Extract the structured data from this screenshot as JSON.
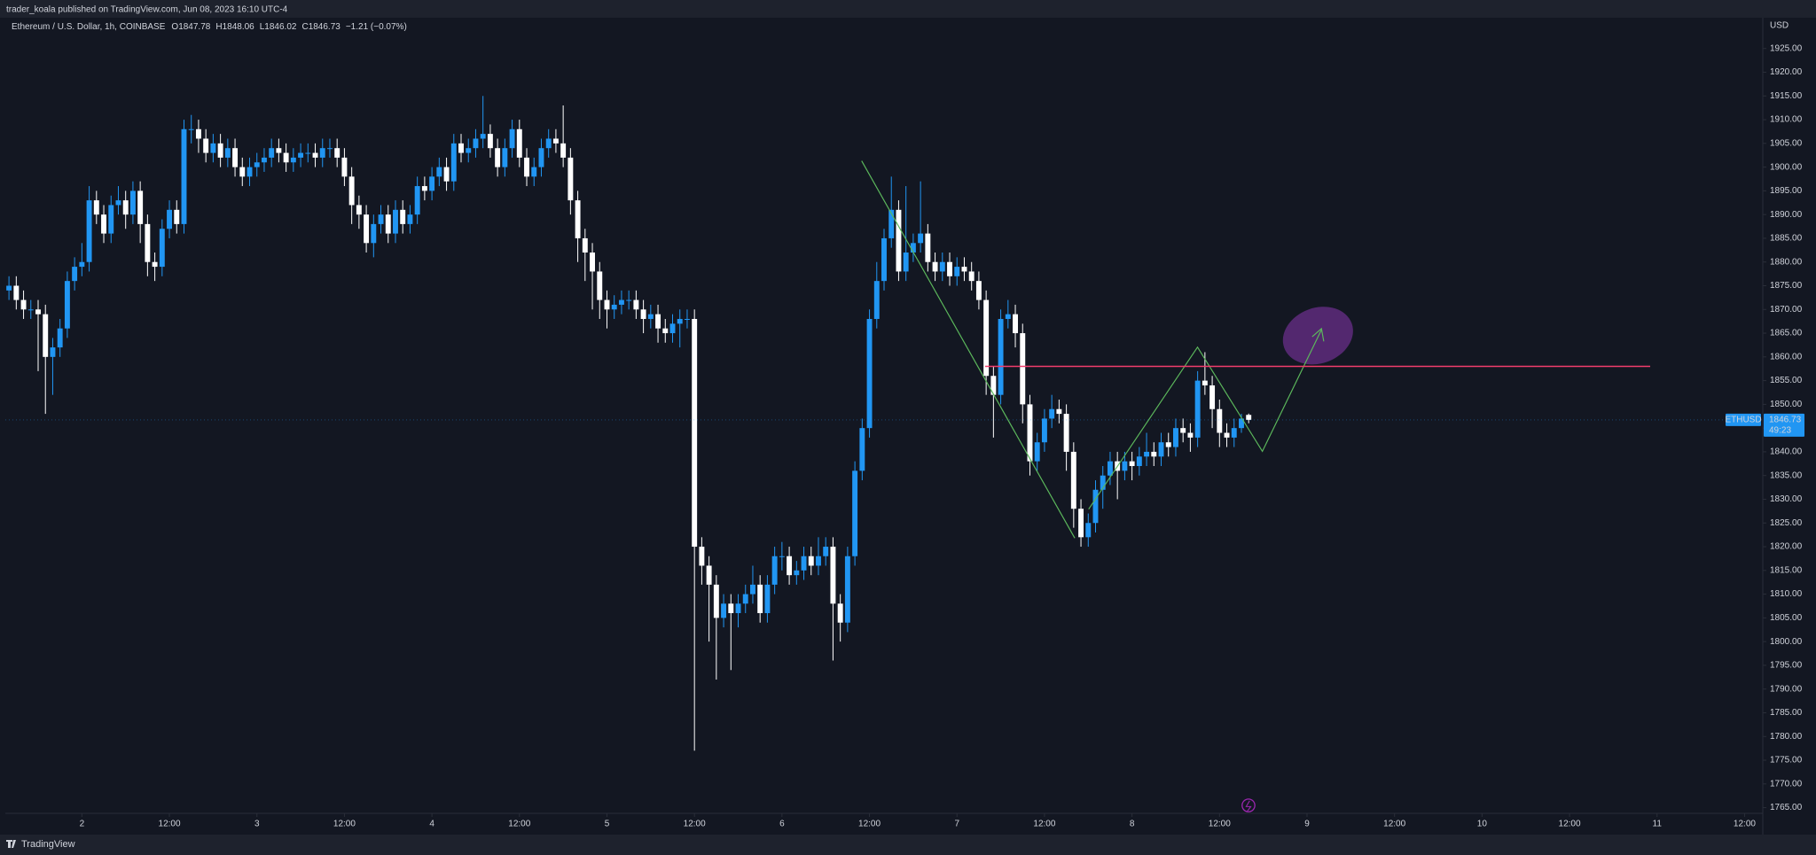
{
  "chart_data": {
    "type": "candlestick",
    "published": "trader_koala published on TradingView.com, Jun 08, 2023 16:10 UTC-4",
    "title": "Ethereum / U.S. Dollar, 1h, COINBASE",
    "ohlc_labels": [
      "O",
      "H",
      "L",
      "C"
    ],
    "change_label": "−1.21 (−0.07%)",
    "currency": "USD",
    "symbol_tag": "ETHUSD",
    "countdown": "49:23",
    "footer": "TradingView",
    "up_color": "#2196f3",
    "down_color": "#ffffff",
    "open": [
      1874,
      1875,
      1872,
      1870,
      1870,
      1869,
      1860,
      1862,
      1866,
      1876,
      1879,
      1880,
      1893,
      1890,
      1886,
      1892,
      1893,
      1890,
      1895,
      1888,
      1880,
      1879,
      1887,
      1891,
      1888,
      1908,
      1908,
      1906,
      1903,
      1905,
      1902,
      1904,
      1900,
      1898,
      1900,
      1901,
      1902,
      1904,
      1903,
      1901,
      1902,
      1903,
      1903,
      1902,
      1904,
      1904,
      1902,
      1898,
      1892,
      1890,
      1884,
      1888,
      1890,
      1886,
      1891,
      1888,
      1890,
      1896,
      1895,
      1898,
      1900,
      1897,
      1905,
      1903,
      1904,
      1906,
      1907,
      1904,
      1900,
      1904,
      1908,
      1902,
      1898,
      1900,
      1904,
      1906,
      1905,
      1902,
      1893,
      1885,
      1882,
      1878,
      1872,
      1870,
      1871,
      1872,
      1872,
      1870,
      1868,
      1869,
      1866,
      1865,
      1867,
      1868,
      1868,
      1820,
      1816,
      1812,
      1805,
      1808,
      1806,
      1808,
      1810,
      1812,
      1806,
      1812,
      1818,
      1818,
      1814,
      1815,
      1818,
      1816,
      1818,
      1820,
      1808,
      1804,
      1818,
      1836,
      1845,
      1868,
      1876,
      1885,
      1891,
      1878,
      1882,
      1884,
      1886,
      1880,
      1878,
      1880,
      1877,
      1879,
      1878,
      1876,
      1872,
      1856,
      1852,
      1868,
      1869,
      1865,
      1850,
      1838,
      1842,
      1847,
      1849,
      1848,
      1840,
      1828,
      1822,
      1825,
      1832,
      1835,
      1838,
      1836,
      1838,
      1837,
      1839,
      1840,
      1839,
      1842,
      1841,
      1845,
      1844,
      1843,
      1855,
      1854,
      1849,
      1844,
      1843,
      1845,
      1847.78
    ],
    "high": [
      1877,
      1877,
      1874,
      1872,
      1872,
      1871,
      1864,
      1868,
      1878,
      1881,
      1884,
      1896,
      1895,
      1892,
      1894,
      1896,
      1895,
      1897,
      1897,
      1890,
      1882,
      1889,
      1893,
      1893,
      1910,
      1911,
      1910,
      1908,
      1907,
      1907,
      1906,
      1906,
      1902,
      1902,
      1903,
      1904,
      1906,
      1906,
      1905,
      1904,
      1905,
      1905,
      1905,
      1906,
      1906,
      1906,
      1904,
      1900,
      1894,
      1892,
      1890,
      1892,
      1892,
      1893,
      1893,
      1892,
      1898,
      1898,
      1900,
      1902,
      1902,
      1907,
      1907,
      1906,
      1908,
      1915,
      1909,
      1906,
      1906,
      1910,
      1910,
      1904,
      1902,
      1906,
      1908,
      1908,
      1913,
      1904,
      1895,
      1887,
      1884,
      1880,
      1874,
      1873,
      1874,
      1874,
      1874,
      1872,
      1871,
      1871,
      1868,
      1869,
      1870,
      1870,
      1870,
      1822,
      1818,
      1814,
      1810,
      1810,
      1810,
      1812,
      1816,
      1814,
      1814,
      1820,
      1821,
      1820,
      1817,
      1820,
      1820,
      1822,
      1822,
      1822,
      1810,
      1820,
      1838,
      1847,
      1870,
      1880,
      1887,
      1898,
      1893,
      1896,
      1886,
      1897,
      1888,
      1882,
      1882,
      1882,
      1881,
      1881,
      1880,
      1878,
      1874,
      1858,
      1870,
      1872,
      1871,
      1867,
      1852,
      1844,
      1849,
      1852,
      1851,
      1850,
      1842,
      1830,
      1827,
      1834,
      1837,
      1840,
      1840,
      1840,
      1840,
      1841,
      1844,
      1842,
      1844,
      1844,
      1847,
      1847,
      1846,
      1857,
      1861,
      1856,
      1851,
      1846,
      1847,
      1848,
      1848.06
    ],
    "low": [
      1872,
      1870,
      1868,
      1868,
      1857,
      1848,
      1852,
      1860,
      1864,
      1874,
      1877,
      1878,
      1888,
      1884,
      1884,
      1890,
      1887,
      1888,
      1884,
      1877,
      1876,
      1877,
      1885,
      1886,
      1886,
      1905,
      1903,
      1901,
      1901,
      1900,
      1900,
      1898,
      1896,
      1896,
      1898,
      1899,
      1900,
      1901,
      1899,
      1899,
      1900,
      1901,
      1900,
      1900,
      1902,
      1900,
      1896,
      1888,
      1887,
      1882,
      1881,
      1886,
      1884,
      1884,
      1886,
      1886,
      1888,
      1893,
      1893,
      1896,
      1895,
      1895,
      1901,
      1901,
      1902,
      1904,
      1902,
      1898,
      1898,
      1902,
      1900,
      1896,
      1896,
      1898,
      1902,
      1903,
      1900,
      1890,
      1880,
      1876,
      1870,
      1868,
      1866,
      1868,
      1869,
      1870,
      1868,
      1865,
      1866,
      1863,
      1863,
      1863,
      1862,
      1866,
      1777,
      1812,
      1800,
      1792,
      1803,
      1794,
      1803,
      1806,
      1808,
      1804,
      1804,
      1810,
      1815,
      1812,
      1812,
      1813,
      1814,
      1814,
      1816,
      1796,
      1800,
      1802,
      1816,
      1834,
      1843,
      1866,
      1874,
      1883,
      1876,
      1876,
      1880,
      1882,
      1878,
      1876,
      1876,
      1875,
      1875,
      1876,
      1874,
      1870,
      1852,
      1843,
      1850,
      1866,
      1862,
      1846,
      1835,
      1836,
      1840,
      1845,
      1846,
      1836,
      1824,
      1820,
      1820,
      1823,
      1828,
      1833,
      1830,
      1834,
      1834,
      1835,
      1837,
      1837,
      1837,
      1839,
      1839,
      1842,
      1840,
      1841,
      1852,
      1845,
      1841,
      1841,
      1841,
      1844,
      1846.02
    ],
    "close": [
      1875,
      1872,
      1870,
      1870,
      1869,
      1860,
      1862,
      1866,
      1876,
      1879,
      1880,
      1893,
      1890,
      1886,
      1892,
      1893,
      1890,
      1895,
      1888,
      1880,
      1879,
      1887,
      1891,
      1888,
      1908,
      1908,
      1906,
      1903,
      1905,
      1902,
      1904,
      1900,
      1898,
      1900,
      1901,
      1902,
      1904,
      1903,
      1901,
      1902,
      1903,
      1903,
      1902,
      1904,
      1904,
      1902,
      1898,
      1892,
      1890,
      1884,
      1888,
      1890,
      1886,
      1891,
      1888,
      1890,
      1896,
      1895,
      1898,
      1900,
      1897,
      1905,
      1903,
      1904,
      1906,
      1907,
      1904,
      1900,
      1904,
      1908,
      1902,
      1898,
      1900,
      1904,
      1906,
      1905,
      1902,
      1893,
      1885,
      1882,
      1878,
      1872,
      1870,
      1871,
      1872,
      1872,
      1870,
      1868,
      1869,
      1866,
      1865,
      1867,
      1868,
      1868,
      1820,
      1816,
      1812,
      1805,
      1808,
      1806,
      1808,
      1810,
      1812,
      1806,
      1812,
      1818,
      1818,
      1814,
      1815,
      1818,
      1816,
      1818,
      1820,
      1808,
      1804,
      1818,
      1836,
      1845,
      1868,
      1876,
      1885,
      1891,
      1878,
      1882,
      1884,
      1886,
      1880,
      1878,
      1880,
      1877,
      1879,
      1878,
      1876,
      1872,
      1856,
      1852,
      1868,
      1869,
      1865,
      1850,
      1838,
      1842,
      1847,
      1849,
      1848,
      1840,
      1828,
      1822,
      1825,
      1832,
      1835,
      1838,
      1836,
      1838,
      1837,
      1839,
      1840,
      1839,
      1842,
      1841,
      1845,
      1844,
      1843,
      1855,
      1854,
      1849,
      1844,
      1843,
      1845,
      1847,
      1846.73
    ],
    "horizontal_line": {
      "value": 1858,
      "color": "#f23d6d"
    },
    "xlim": [
      -0.5,
      240.5
    ],
    "xticks": [
      {
        "value": 10,
        "label": "2"
      },
      {
        "value": 22,
        "label": "12:00"
      },
      {
        "value": 34,
        "label": "3"
      },
      {
        "value": 46,
        "label": "12:00"
      },
      {
        "value": 58,
        "label": "4"
      },
      {
        "value": 70,
        "label": "12:00"
      },
      {
        "value": 82,
        "label": "5"
      },
      {
        "value": 94,
        "label": "12:00"
      },
      {
        "value": 106,
        "label": "6"
      },
      {
        "value": 118,
        "label": "12:00"
      },
      {
        "value": 130,
        "label": "7"
      },
      {
        "value": 142,
        "label": "12:00"
      },
      {
        "value": 154,
        "label": "8"
      },
      {
        "value": 166,
        "label": "12:00"
      },
      {
        "value": 178,
        "label": "9"
      },
      {
        "value": 190,
        "label": "12:00"
      },
      {
        "value": 202,
        "label": "10"
      },
      {
        "value": 214,
        "label": "12:00"
      },
      {
        "value": 226,
        "label": "11"
      },
      {
        "value": 238,
        "label": "12:00"
      }
    ],
    "ylim": [
      1763.8,
      1931.3
    ],
    "yticks": [
      {
        "value": 1765,
        "label": "1765.00"
      },
      {
        "value": 1770,
        "label": "1770.00"
      },
      {
        "value": 1775,
        "label": "1775.00"
      },
      {
        "value": 1780,
        "label": "1780.00"
      },
      {
        "value": 1785,
        "label": "1785.00"
      },
      {
        "value": 1790,
        "label": "1790.00"
      },
      {
        "value": 1795,
        "label": "1795.00"
      },
      {
        "value": 1800,
        "label": "1800.00"
      },
      {
        "value": 1805,
        "label": "1805.00"
      },
      {
        "value": 1810,
        "label": "1810.00"
      },
      {
        "value": 1815,
        "label": "1815.00"
      },
      {
        "value": 1820,
        "label": "1820.00"
      },
      {
        "value": 1825,
        "label": "1825.00"
      },
      {
        "value": 1830,
        "label": "1830.00"
      },
      {
        "value": 1835,
        "label": "1835.00"
      },
      {
        "value": 1840,
        "label": "1840.00"
      },
      {
        "value": 1845,
        "label": "1845.00"
      },
      {
        "value": 1850,
        "label": "1850.00"
      },
      {
        "value": 1855,
        "label": "1855.00"
      },
      {
        "value": 1860,
        "label": "1860.00"
      },
      {
        "value": 1865,
        "label": "1865.00"
      },
      {
        "value": 1870,
        "label": "1870.00"
      },
      {
        "value": 1875,
        "label": "1875.00"
      },
      {
        "value": 1880,
        "label": "1880.00"
      },
      {
        "value": 1885,
        "label": "1885.00"
      },
      {
        "value": 1890,
        "label": "1890.00"
      },
      {
        "value": 1895,
        "label": "1895.00"
      },
      {
        "value": 1900,
        "label": "1900.00"
      },
      {
        "value": 1905,
        "label": "1905.00"
      },
      {
        "value": 1910,
        "label": "1910.00"
      },
      {
        "value": 1915,
        "label": "1915.00"
      },
      {
        "value": 1920,
        "label": "1920.00"
      },
      {
        "value": 1925,
        "label": "1925.00"
      }
    ],
    "grid": false
  }
}
